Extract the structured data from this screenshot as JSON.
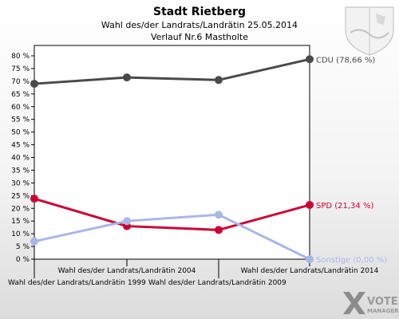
{
  "chart_data": {
    "type": "line",
    "title": "Stadt Rietberg",
    "subtitle": "Wahl des/der Landrats/Landrätin 25.05.2014",
    "subtitle2": "Verlauf Nr.6 Mastholte",
    "categories": [
      "Wahl des/der Landrats/Landrätin 1999",
      "Wahl des/der Landrats/Landrätin 2004",
      "Wahl des/der Landrats/Landrätin 2009",
      "Wahl des/der Landrats/Landrätin 2014"
    ],
    "ylim": [
      0,
      80
    ],
    "yticks": [
      "0 %",
      "5 %",
      "10 %",
      "15 %",
      "20 %",
      "25 %",
      "30 %",
      "35 %",
      "40 %",
      "45 %",
      "50 %",
      "55 %",
      "60 %",
      "65 %",
      "70 %",
      "75 %",
      "80 %"
    ],
    "grid": false,
    "series": [
      {
        "name": "CDU",
        "label": "CDU (78,66 %)",
        "color": "#4a4a4a",
        "values": [
          69.0,
          71.5,
          70.5,
          78.66
        ]
      },
      {
        "name": "SPD",
        "label": "SPD (21,34 %)",
        "color": "#cc0033",
        "values": [
          23.8,
          13.0,
          11.5,
          21.34
        ]
      },
      {
        "name": "Sonstige",
        "label": "Sonstige (0,00 %)",
        "color": "#a8b8e6",
        "values": [
          7.0,
          15.0,
          17.5,
          0.0
        ]
      }
    ]
  },
  "branding": {
    "logo_line1": "VOTE",
    "logo_line2": "MANAGER"
  }
}
